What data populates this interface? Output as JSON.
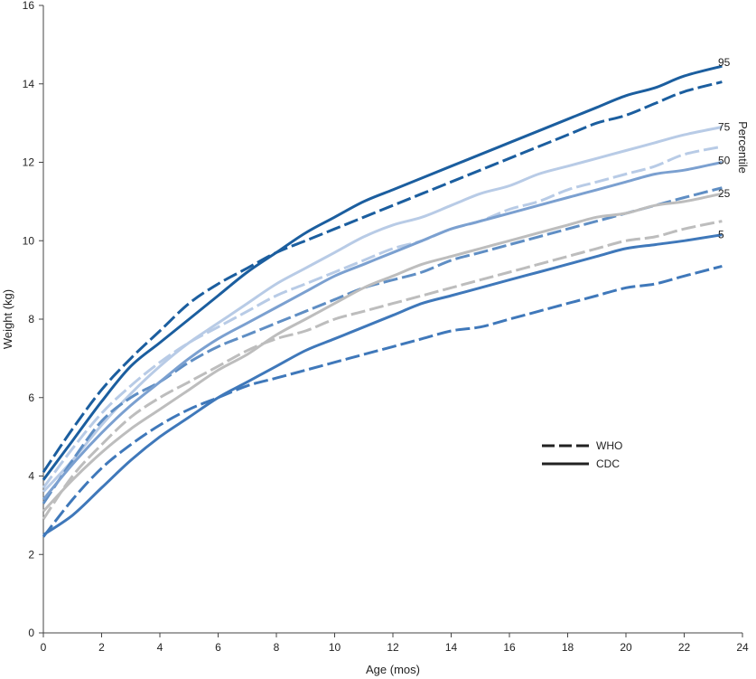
{
  "chart_data": {
    "type": "line",
    "title": "",
    "xlabel": "Age (mos)",
    "ylabel": "Weight (kg)",
    "xlim": [
      0,
      24
    ],
    "ylim": [
      0,
      16
    ],
    "x_ticks": [
      0,
      2,
      4,
      6,
      8,
      10,
      12,
      14,
      16,
      18,
      20,
      22,
      24
    ],
    "y_ticks": [
      0,
      2,
      4,
      6,
      8,
      10,
      12,
      14,
      16
    ],
    "grid": false,
    "legend_position": "center-right",
    "side_label": "Percentile",
    "legend": [
      {
        "label": "WHO",
        "style": "dashed"
      },
      {
        "label": "CDC",
        "style": "solid"
      }
    ],
    "x": [
      0,
      1,
      2,
      3,
      4,
      5,
      6,
      7,
      8,
      9,
      10,
      11,
      12,
      13,
      14,
      15,
      16,
      17,
      18,
      19,
      20,
      21,
      22,
      23.3
    ],
    "series": [
      {
        "percentile": "95",
        "source": "WHO",
        "style": "dashed",
        "color": "#1b5e9f",
        "values": [
          4.1,
          5.2,
          6.2,
          7.0,
          7.7,
          8.4,
          8.9,
          9.3,
          9.7,
          10.0,
          10.3,
          10.6,
          10.9,
          11.2,
          11.5,
          11.8,
          12.1,
          12.4,
          12.7,
          13.0,
          13.2,
          13.5,
          13.8,
          14.05
        ]
      },
      {
        "percentile": "95",
        "source": "CDC",
        "style": "solid",
        "color": "#1b5e9f",
        "values": [
          3.9,
          4.9,
          5.9,
          6.8,
          7.4,
          8.0,
          8.6,
          9.2,
          9.7,
          10.2,
          10.6,
          11.0,
          11.3,
          11.6,
          11.9,
          12.2,
          12.5,
          12.8,
          13.1,
          13.4,
          13.7,
          13.9,
          14.2,
          14.45
        ]
      },
      {
        "percentile": "75",
        "source": "WHO",
        "style": "dashed",
        "color": "#b8cbe6",
        "values": [
          3.7,
          4.7,
          5.6,
          6.3,
          6.9,
          7.4,
          7.8,
          8.2,
          8.6,
          8.9,
          9.2,
          9.5,
          9.8,
          10.0,
          10.3,
          10.5,
          10.8,
          11.0,
          11.3,
          11.5,
          11.7,
          11.9,
          12.2,
          12.4
        ]
      },
      {
        "percentile": "75",
        "source": "CDC",
        "style": "solid",
        "color": "#b8cbe6",
        "values": [
          3.6,
          4.4,
          5.3,
          6.1,
          6.8,
          7.4,
          7.9,
          8.4,
          8.9,
          9.3,
          9.7,
          10.1,
          10.4,
          10.6,
          10.9,
          11.2,
          11.4,
          11.7,
          11.9,
          12.1,
          12.3,
          12.5,
          12.7,
          12.9
        ]
      },
      {
        "percentile": "50",
        "source": "WHO",
        "style": "dashed",
        "color": "#5f8ec4",
        "values": [
          3.3,
          4.4,
          5.4,
          6.0,
          6.4,
          6.9,
          7.3,
          7.6,
          7.9,
          8.2,
          8.5,
          8.8,
          9.0,
          9.2,
          9.5,
          9.7,
          9.9,
          10.1,
          10.3,
          10.5,
          10.7,
          10.9,
          11.1,
          11.35
        ]
      },
      {
        "percentile": "50",
        "source": "CDC",
        "style": "solid",
        "color": "#7ba0d0",
        "values": [
          3.4,
          4.3,
          5.1,
          5.8,
          6.4,
          7.0,
          7.5,
          7.9,
          8.3,
          8.7,
          9.1,
          9.4,
          9.7,
          10.0,
          10.3,
          10.5,
          10.7,
          10.9,
          11.1,
          11.3,
          11.5,
          11.7,
          11.8,
          12.0
        ]
      },
      {
        "percentile": "25",
        "source": "WHO",
        "style": "dashed",
        "color": "#bdbdbd",
        "values": [
          2.9,
          4.0,
          4.8,
          5.5,
          6.0,
          6.4,
          6.8,
          7.2,
          7.5,
          7.7,
          8.0,
          8.2,
          8.4,
          8.6,
          8.8,
          9.0,
          9.2,
          9.4,
          9.6,
          9.8,
          10.0,
          10.1,
          10.3,
          10.5
        ]
      },
      {
        "percentile": "25",
        "source": "CDC",
        "style": "solid",
        "color": "#bdbdbd",
        "values": [
          3.1,
          3.9,
          4.6,
          5.2,
          5.7,
          6.2,
          6.7,
          7.1,
          7.6,
          8.0,
          8.4,
          8.8,
          9.1,
          9.4,
          9.6,
          9.8,
          10.0,
          10.2,
          10.4,
          10.6,
          10.7,
          10.9,
          11.0,
          11.2
        ]
      },
      {
        "percentile": "5",
        "source": "WHO",
        "style": "dashed",
        "color": "#3f78ba",
        "values": [
          2.45,
          3.4,
          4.2,
          4.8,
          5.3,
          5.7,
          6.0,
          6.3,
          6.5,
          6.7,
          6.9,
          7.1,
          7.3,
          7.5,
          7.7,
          7.8,
          8.0,
          8.2,
          8.4,
          8.6,
          8.8,
          8.9,
          9.1,
          9.35
        ]
      },
      {
        "percentile": "5",
        "source": "CDC",
        "style": "solid",
        "color": "#3f78ba",
        "values": [
          2.5,
          3.0,
          3.7,
          4.4,
          5.0,
          5.5,
          6.0,
          6.4,
          6.8,
          7.2,
          7.5,
          7.8,
          8.1,
          8.4,
          8.6,
          8.8,
          9.0,
          9.2,
          9.4,
          9.6,
          9.8,
          9.9,
          10.0,
          10.15
        ]
      }
    ],
    "percentile_labels": [
      {
        "text": "95",
        "at_y": 14.55
      },
      {
        "text": "75",
        "at_y": 12.9
      },
      {
        "text": "50",
        "at_y": 12.05
      },
      {
        "text": "25",
        "at_y": 11.2
      },
      {
        "text": "5",
        "at_y": 10.15
      }
    ]
  }
}
